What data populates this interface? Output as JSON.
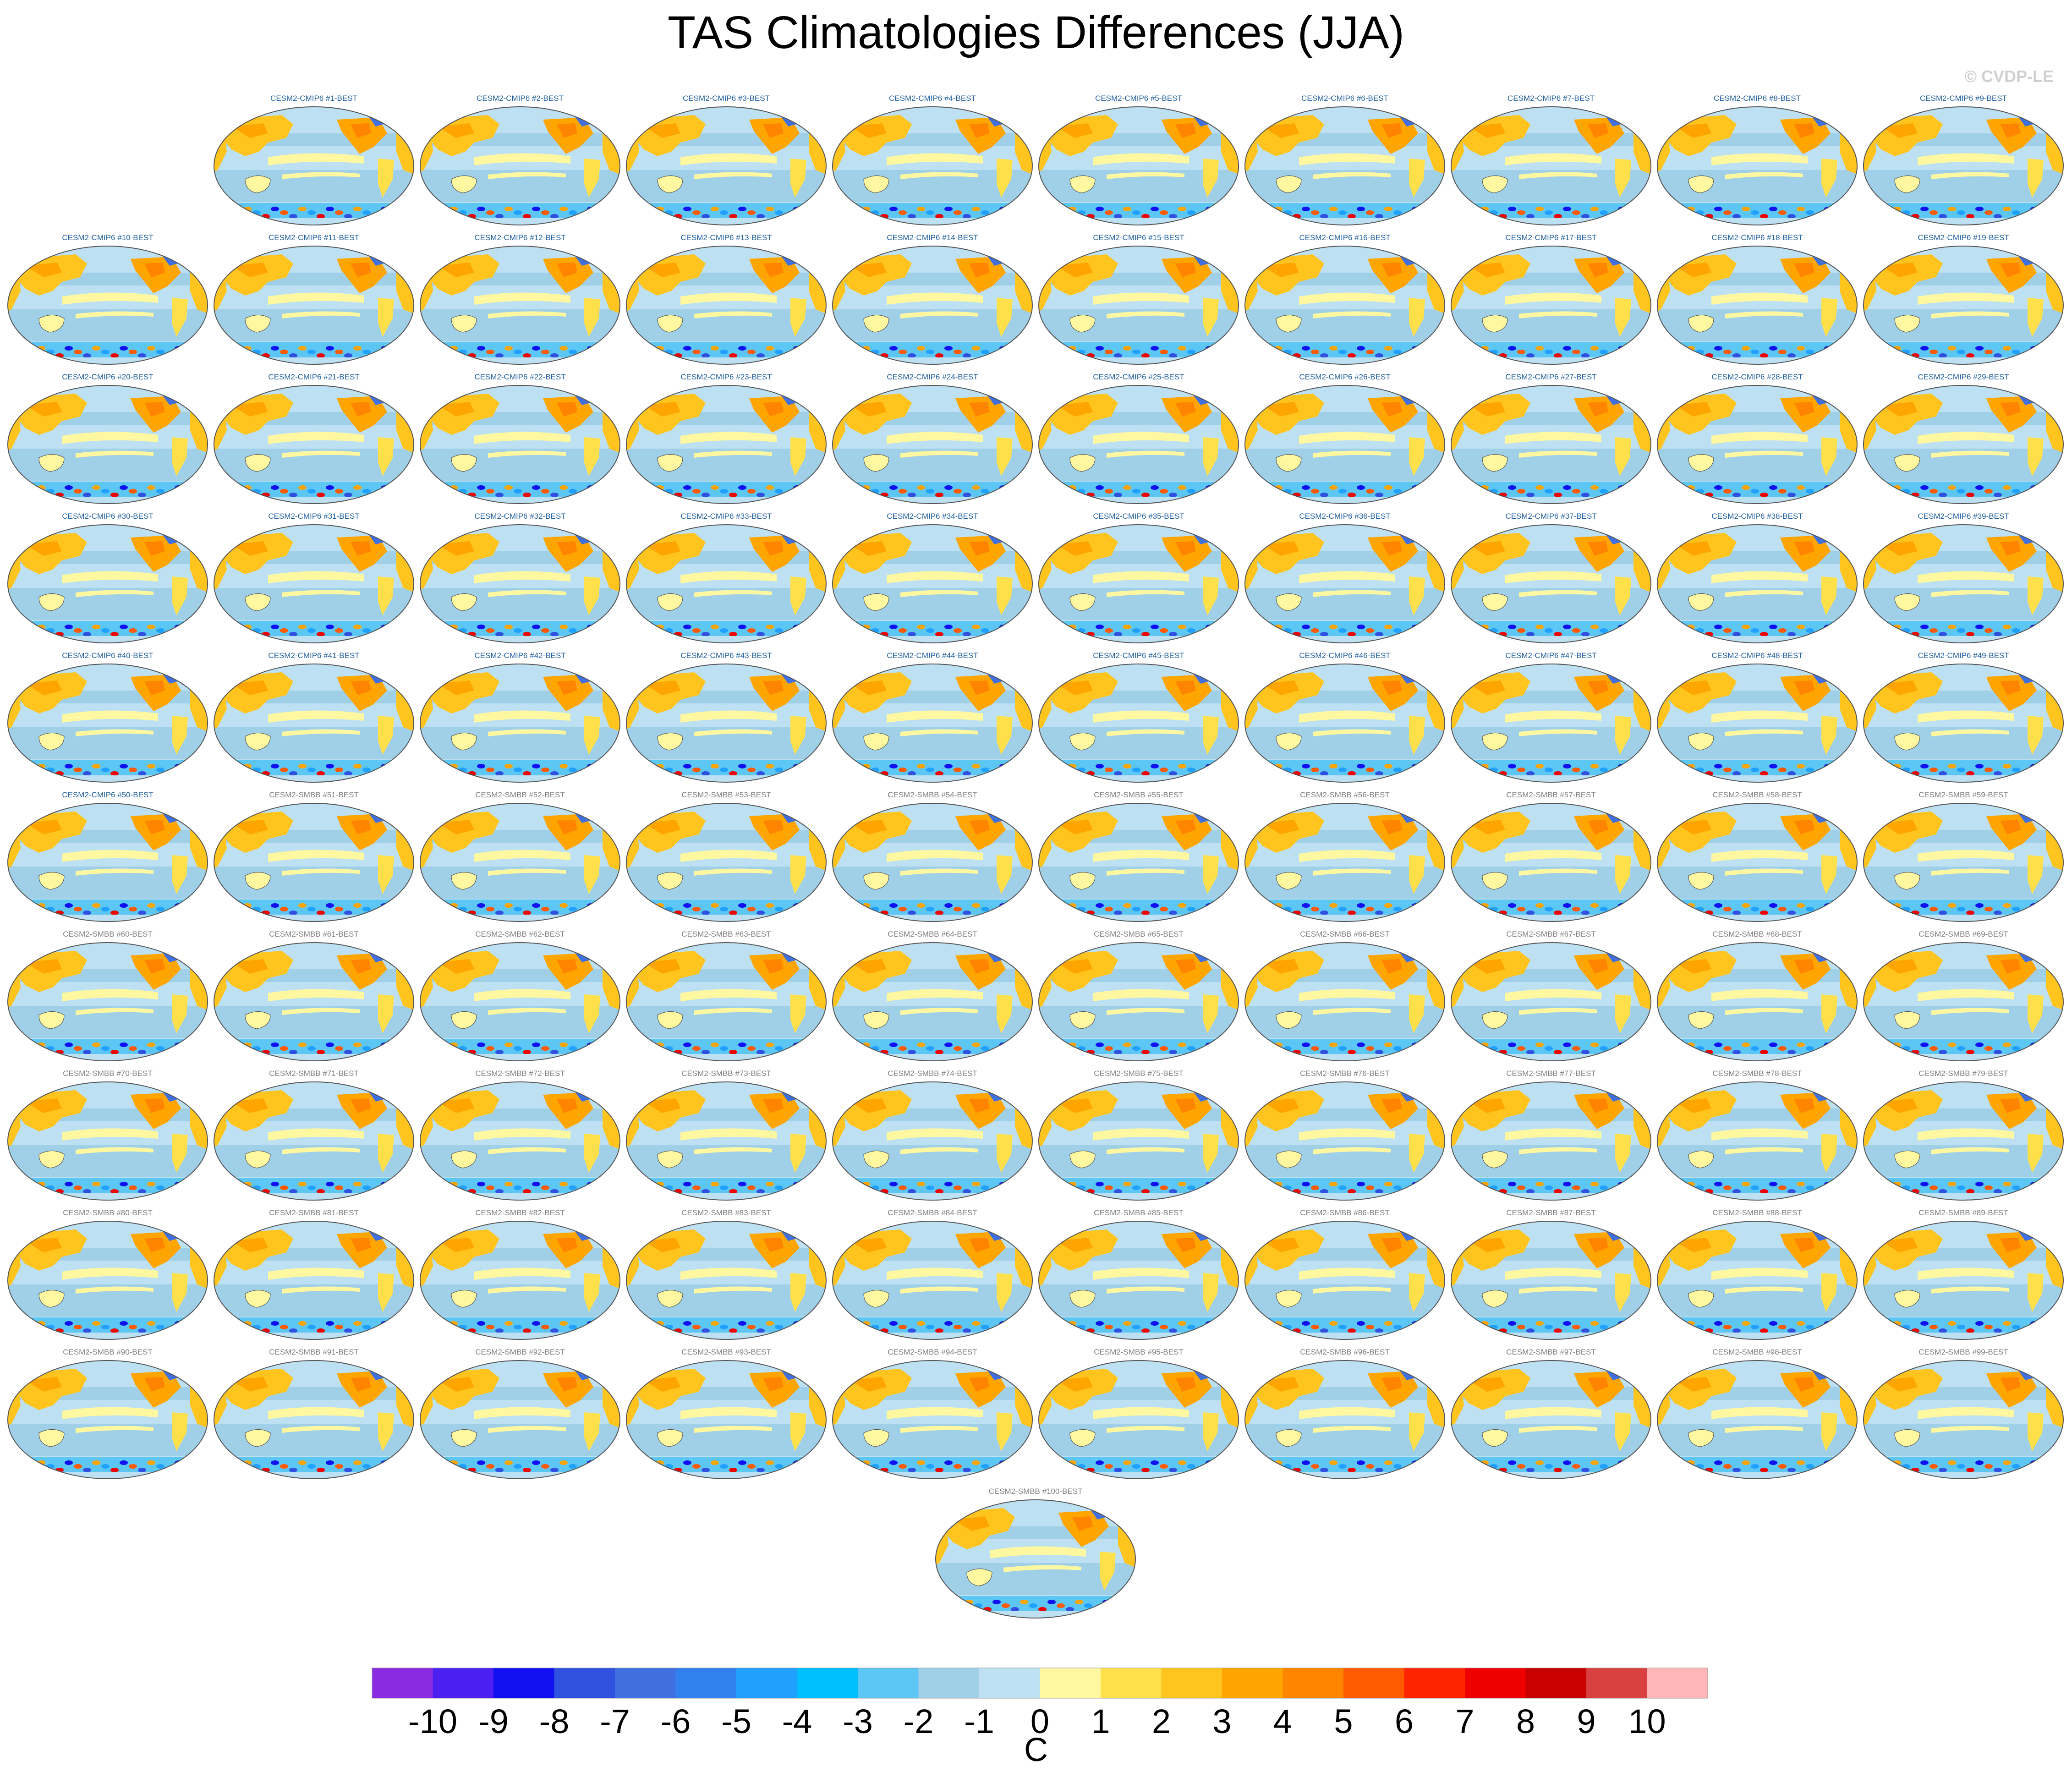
{
  "chart_data": {
    "type": "heatmap",
    "title": "TAS Climatologies Differences (JJA)",
    "watermark": "© CVDP-LE",
    "projection": "robinson, pacific-centred",
    "layout": "10 columns; last row single centred panel",
    "panels": [
      {
        "title": "CESM2-CMIP6 #1-BEST",
        "ensemble": "CESM2-CMIP6"
      },
      {
        "title": "CESM2-CMIP6 #2-BEST",
        "ensemble": "CESM2-CMIP6"
      },
      {
        "title": "CESM2-CMIP6 #3-BEST",
        "ensemble": "CESM2-CMIP6"
      },
      {
        "title": "CESM2-CMIP6 #4-BEST",
        "ensemble": "CESM2-CMIP6"
      },
      {
        "title": "CESM2-CMIP6 #5-BEST",
        "ensemble": "CESM2-CMIP6"
      },
      {
        "title": "CESM2-CMIP6 #6-BEST",
        "ensemble": "CESM2-CMIP6"
      },
      {
        "title": "CESM2-CMIP6 #7-BEST",
        "ensemble": "CESM2-CMIP6"
      },
      {
        "title": "CESM2-CMIP6 #8-BEST",
        "ensemble": "CESM2-CMIP6"
      },
      {
        "title": "CESM2-CMIP6 #9-BEST",
        "ensemble": "CESM2-CMIP6"
      },
      {
        "title": "CESM2-CMIP6 #10-BEST",
        "ensemble": "CESM2-CMIP6"
      },
      {
        "title": "CESM2-CMIP6 #11-BEST",
        "ensemble": "CESM2-CMIP6"
      },
      {
        "title": "CESM2-CMIP6 #12-BEST",
        "ensemble": "CESM2-CMIP6"
      },
      {
        "title": "CESM2-CMIP6 #13-BEST",
        "ensemble": "CESM2-CMIP6"
      },
      {
        "title": "CESM2-CMIP6 #14-BEST",
        "ensemble": "CESM2-CMIP6"
      },
      {
        "title": "CESM2-CMIP6 #15-BEST",
        "ensemble": "CESM2-CMIP6"
      },
      {
        "title": "CESM2-CMIP6 #16-BEST",
        "ensemble": "CESM2-CMIP6"
      },
      {
        "title": "CESM2-CMIP6 #17-BEST",
        "ensemble": "CESM2-CMIP6"
      },
      {
        "title": "CESM2-CMIP6 #18-BEST",
        "ensemble": "CESM2-CMIP6"
      },
      {
        "title": "CESM2-CMIP6 #19-BEST",
        "ensemble": "CESM2-CMIP6"
      },
      {
        "title": "CESM2-CMIP6 #20-BEST",
        "ensemble": "CESM2-CMIP6"
      },
      {
        "title": "CESM2-CMIP6 #21-BEST",
        "ensemble": "CESM2-CMIP6"
      },
      {
        "title": "CESM2-CMIP6 #22-BEST",
        "ensemble": "CESM2-CMIP6"
      },
      {
        "title": "CESM2-CMIP6 #23-BEST",
        "ensemble": "CESM2-CMIP6"
      },
      {
        "title": "CESM2-CMIP6 #24-BEST",
        "ensemble": "CESM2-CMIP6"
      },
      {
        "title": "CESM2-CMIP6 #25-BEST",
        "ensemble": "CESM2-CMIP6"
      },
      {
        "title": "CESM2-CMIP6 #26-BEST",
        "ensemble": "CESM2-CMIP6"
      },
      {
        "title": "CESM2-CMIP6 #27-BEST",
        "ensemble": "CESM2-CMIP6"
      },
      {
        "title": "CESM2-CMIP6 #28-BEST",
        "ensemble": "CESM2-CMIP6"
      },
      {
        "title": "CESM2-CMIP6 #29-BEST",
        "ensemble": "CESM2-CMIP6"
      },
      {
        "title": "CESM2-CMIP6 #30-BEST",
        "ensemble": "CESM2-CMIP6"
      },
      {
        "title": "CESM2-CMIP6 #31-BEST",
        "ensemble": "CESM2-CMIP6"
      },
      {
        "title": "CESM2-CMIP6 #32-BEST",
        "ensemble": "CESM2-CMIP6"
      },
      {
        "title": "CESM2-CMIP6 #33-BEST",
        "ensemble": "CESM2-CMIP6"
      },
      {
        "title": "CESM2-CMIP6 #34-BEST",
        "ensemble": "CESM2-CMIP6"
      },
      {
        "title": "CESM2-CMIP6 #35-BEST",
        "ensemble": "CESM2-CMIP6"
      },
      {
        "title": "CESM2-CMIP6 #36-BEST",
        "ensemble": "CESM2-CMIP6"
      },
      {
        "title": "CESM2-CMIP6 #37-BEST",
        "ensemble": "CESM2-CMIP6"
      },
      {
        "title": "CESM2-CMIP6 #38-BEST",
        "ensemble": "CESM2-CMIP6"
      },
      {
        "title": "CESM2-CMIP6 #39-BEST",
        "ensemble": "CESM2-CMIP6"
      },
      {
        "title": "CESM2-CMIP6 #40-BEST",
        "ensemble": "CESM2-CMIP6"
      },
      {
        "title": "CESM2-CMIP6 #41-BEST",
        "ensemble": "CESM2-CMIP6"
      },
      {
        "title": "CESM2-CMIP6 #42-BEST",
        "ensemble": "CESM2-CMIP6"
      },
      {
        "title": "CESM2-CMIP6 #43-BEST",
        "ensemble": "CESM2-CMIP6"
      },
      {
        "title": "CESM2-CMIP6 #44-BEST",
        "ensemble": "CESM2-CMIP6"
      },
      {
        "title": "CESM2-CMIP6 #45-BEST",
        "ensemble": "CESM2-CMIP6"
      },
      {
        "title": "CESM2-CMIP6 #46-BEST",
        "ensemble": "CESM2-CMIP6"
      },
      {
        "title": "CESM2-CMIP6 #47-BEST",
        "ensemble": "CESM2-CMIP6"
      },
      {
        "title": "CESM2-CMIP6 #48-BEST",
        "ensemble": "CESM2-CMIP6"
      },
      {
        "title": "CESM2-CMIP6 #49-BEST",
        "ensemble": "CESM2-CMIP6"
      },
      {
        "title": "CESM2-CMIP6 #50-BEST",
        "ensemble": "CESM2-CMIP6"
      },
      {
        "title": "CESM2-SMBB #51-BEST",
        "ensemble": "CESM2-SMBB"
      },
      {
        "title": "CESM2-SMBB #52-BEST",
        "ensemble": "CESM2-SMBB"
      },
      {
        "title": "CESM2-SMBB #53-BEST",
        "ensemble": "CESM2-SMBB"
      },
      {
        "title": "CESM2-SMBB #54-BEST",
        "ensemble": "CESM2-SMBB"
      },
      {
        "title": "CESM2-SMBB #55-BEST",
        "ensemble": "CESM2-SMBB"
      },
      {
        "title": "CESM2-SMBB #56-BEST",
        "ensemble": "CESM2-SMBB"
      },
      {
        "title": "CESM2-SMBB #57-BEST",
        "ensemble": "CESM2-SMBB"
      },
      {
        "title": "CESM2-SMBB #58-BEST",
        "ensemble": "CESM2-SMBB"
      },
      {
        "title": "CESM2-SMBB #59-BEST",
        "ensemble": "CESM2-SMBB"
      },
      {
        "title": "CESM2-SMBB #60-BEST",
        "ensemble": "CESM2-SMBB"
      },
      {
        "title": "CESM2-SMBB #61-BEST",
        "ensemble": "CESM2-SMBB"
      },
      {
        "title": "CESM2-SMBB #62-BEST",
        "ensemble": "CESM2-SMBB"
      },
      {
        "title": "CESM2-SMBB #63-BEST",
        "ensemble": "CESM2-SMBB"
      },
      {
        "title": "CESM2-SMBB #64-BEST",
        "ensemble": "CESM2-SMBB"
      },
      {
        "title": "CESM2-SMBB #65-BEST",
        "ensemble": "CESM2-SMBB"
      },
      {
        "title": "CESM2-SMBB #66-BEST",
        "ensemble": "CESM2-SMBB"
      },
      {
        "title": "CESM2-SMBB #67-BEST",
        "ensemble": "CESM2-SMBB"
      },
      {
        "title": "CESM2-SMBB #68-BEST",
        "ensemble": "CESM2-SMBB"
      },
      {
        "title": "CESM2-SMBB #69-BEST",
        "ensemble": "CESM2-SMBB"
      },
      {
        "title": "CESM2-SMBB #70-BEST",
        "ensemble": "CESM2-SMBB"
      },
      {
        "title": "CESM2-SMBB #71-BEST",
        "ensemble": "CESM2-SMBB"
      },
      {
        "title": "CESM2-SMBB #72-BEST",
        "ensemble": "CESM2-SMBB"
      },
      {
        "title": "CESM2-SMBB #73-BEST",
        "ensemble": "CESM2-SMBB"
      },
      {
        "title": "CESM2-SMBB #74-BEST",
        "ensemble": "CESM2-SMBB"
      },
      {
        "title": "CESM2-SMBB #75-BEST",
        "ensemble": "CESM2-SMBB"
      },
      {
        "title": "CESM2-SMBB #76-BEST",
        "ensemble": "CESM2-SMBB"
      },
      {
        "title": "CESM2-SMBB #77-BEST",
        "ensemble": "CESM2-SMBB"
      },
      {
        "title": "CESM2-SMBB #78-BEST",
        "ensemble": "CESM2-SMBB"
      },
      {
        "title": "CESM2-SMBB #79-BEST",
        "ensemble": "CESM2-SMBB"
      },
      {
        "title": "CESM2-SMBB #80-BEST",
        "ensemble": "CESM2-SMBB"
      },
      {
        "title": "CESM2-SMBB #81-BEST",
        "ensemble": "CESM2-SMBB"
      },
      {
        "title": "CESM2-SMBB #82-BEST",
        "ensemble": "CESM2-SMBB"
      },
      {
        "title": "CESM2-SMBB #83-BEST",
        "ensemble": "CESM2-SMBB"
      },
      {
        "title": "CESM2-SMBB #84-BEST",
        "ensemble": "CESM2-SMBB"
      },
      {
        "title": "CESM2-SMBB #85-BEST",
        "ensemble": "CESM2-SMBB"
      },
      {
        "title": "CESM2-SMBB #86-BEST",
        "ensemble": "CESM2-SMBB"
      },
      {
        "title": "CESM2-SMBB #87-BEST",
        "ensemble": "CESM2-SMBB"
      },
      {
        "title": "CESM2-SMBB #88-BEST",
        "ensemble": "CESM2-SMBB"
      },
      {
        "title": "CESM2-SMBB #89-BEST",
        "ensemble": "CESM2-SMBB"
      },
      {
        "title": "CESM2-SMBB #90-BEST",
        "ensemble": "CESM2-SMBB"
      },
      {
        "title": "CESM2-SMBB #91-BEST",
        "ensemble": "CESM2-SMBB"
      },
      {
        "title": "CESM2-SMBB #92-BEST",
        "ensemble": "CESM2-SMBB"
      },
      {
        "title": "CESM2-SMBB #93-BEST",
        "ensemble": "CESM2-SMBB"
      },
      {
        "title": "CESM2-SMBB #94-BEST",
        "ensemble": "CESM2-SMBB"
      },
      {
        "title": "CESM2-SMBB #95-BEST",
        "ensemble": "CESM2-SMBB"
      },
      {
        "title": "CESM2-SMBB #96-BEST",
        "ensemble": "CESM2-SMBB"
      },
      {
        "title": "CESM2-SMBB #97-BEST",
        "ensemble": "CESM2-SMBB"
      },
      {
        "title": "CESM2-SMBB #98-BEST",
        "ensemble": "CESM2-SMBB"
      },
      {
        "title": "CESM2-SMBB #99-BEST",
        "ensemble": "CESM2-SMBB"
      },
      {
        "title": "CESM2-SMBB #100-BEST",
        "ensemble": "CESM2-SMBB"
      }
    ],
    "colorbar": {
      "unit": "C",
      "levels": [
        -10,
        -9,
        -8,
        -7,
        -6,
        -5,
        -4,
        -3,
        -2,
        -1,
        0,
        1,
        2,
        3,
        4,
        5,
        6,
        7,
        8,
        9,
        10
      ],
      "colors": [
        "#8a2be2",
        "#4b1ff0",
        "#1010f0",
        "#3050e0",
        "#4070e0",
        "#3080f0",
        "#20a0ff",
        "#00bfff",
        "#5cc6f5",
        "#a0cfe8",
        "#bde0f2",
        "#fff8a0",
        "#ffe04a",
        "#ffc41e",
        "#ffa500",
        "#ff8500",
        "#ff5a00",
        "#ff2400",
        "#ee0000",
        "#c80000",
        "#d94040",
        "#ffb6b6"
      ],
      "label_range": "-10 to 10 C"
    },
    "field_description": {
      "dominant_ocean_signal": "weak cooling (-1 to -2 C) over mid-latitude and eastern oceans",
      "equatorial_band": "0 to 1 C",
      "northern_continents": "warming 1 to 4 C",
      "greenland_arctic": "cooling -2 to -4 C",
      "southern_ocean_near_antarctica": "strong mixed anomalies -8 to +8 C"
    }
  }
}
